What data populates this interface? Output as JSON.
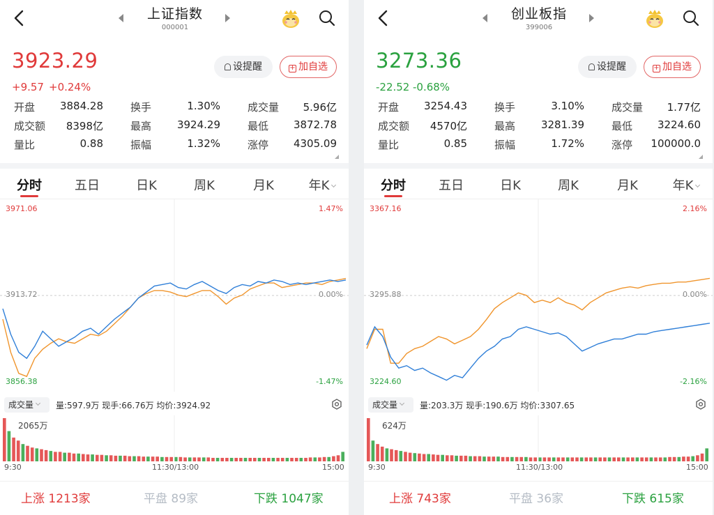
{
  "panels": [
    {
      "title": "上证指数",
      "code": "000001",
      "price": "3923.29",
      "change": "+9.57",
      "change_pct": "+0.24%",
      "direction": "up",
      "buttons": {
        "alert": "设提醒",
        "watchlist": "加自选"
      },
      "stats": [
        {
          "label": "开盘",
          "value": "3884.28",
          "color": "dn"
        },
        {
          "label": "换手",
          "value": "1.30%",
          "color": ""
        },
        {
          "label": "成交量",
          "value": "5.96亿",
          "color": ""
        },
        {
          "label": "成交额",
          "value": "8398亿",
          "color": ""
        },
        {
          "label": "最高",
          "value": "3924.29",
          "color": "up"
        },
        {
          "label": "最低",
          "value": "3872.78",
          "color": "dn"
        },
        {
          "label": "量比",
          "value": "0.88",
          "color": ""
        },
        {
          "label": "振幅",
          "value": "1.32%",
          "color": ""
        },
        {
          "label": "涨停",
          "value": "4305.09",
          "color": "up"
        }
      ],
      "tabs": [
        "分时",
        "五日",
        "日K",
        "周K",
        "月K",
        "年K"
      ],
      "chart": {
        "top_price": "3971.06",
        "mid_price": "3913.72",
        "bottom_price": "3856.38",
        "top_pct": "1.47%",
        "mid_pct": "0.00%",
        "bottom_pct": "-1.47%",
        "ref": 3913.72,
        "min": 3856.38,
        "max": 3971.06,
        "price_series": [
          3905,
          3888,
          3876,
          3872,
          3880,
          3890,
          3885,
          3880,
          3883,
          3886,
          3890,
          3892,
          3888,
          3893,
          3898,
          3902,
          3906,
          3912,
          3916,
          3920,
          3921,
          3922,
          3919,
          3918,
          3921,
          3923,
          3920,
          3917,
          3915,
          3919,
          3921,
          3920,
          3923,
          3922,
          3924,
          3923,
          3921,
          3922,
          3921,
          3922,
          3923,
          3924,
          3923,
          3924
        ],
        "avg_series": [
          3898,
          3876,
          3862,
          3860,
          3872,
          3878,
          3882,
          3885,
          3883,
          3882,
          3885,
          3888,
          3887,
          3890,
          3895,
          3900,
          3906,
          3912,
          3915,
          3917,
          3917,
          3916,
          3914,
          3913,
          3915,
          3917,
          3917,
          3913,
          3908,
          3912,
          3914,
          3918,
          3920,
          3922,
          3922,
          3919,
          3920,
          3921,
          3922,
          3922,
          3921,
          3923,
          3924,
          3925
        ]
      },
      "volume": {
        "selector": "成交量",
        "info": "量:597.9万  现手:66.76万  均价:3924.92",
        "max_label": "2065万",
        "bars": [
          100,
          70,
          55,
          48,
          40,
          36,
          32,
          30,
          28,
          26,
          24,
          22,
          22,
          20,
          20,
          18,
          18,
          17,
          16,
          16,
          15,
          15,
          14,
          14,
          13,
          13,
          13,
          12,
          12,
          12,
          11,
          11,
          11,
          11,
          10,
          10,
          10,
          10,
          10,
          9,
          9,
          9,
          9,
          9,
          9,
          8,
          8,
          8,
          8,
          8,
          8,
          8,
          8,
          8,
          8,
          8,
          8,
          8,
          8,
          8,
          8,
          8,
          8,
          8,
          8,
          8,
          9,
          9,
          9,
          10,
          10,
          12,
          14,
          22
        ]
      },
      "time": {
        "start": "9:30",
        "mid": "11:30/13:00",
        "end": "15:00"
      },
      "breadth": {
        "up_label": "上涨",
        "up": "1213家",
        "flat_label": "平盘",
        "flat": "89家",
        "down_label": "下跌",
        "down": "1047家"
      }
    },
    {
      "title": "创业板指",
      "code": "399006",
      "price": "3273.36",
      "change": "-22.52",
      "change_pct": "-0.68%",
      "direction": "down",
      "buttons": {
        "alert": "设提醒",
        "watchlist": "加自选"
      },
      "stats": [
        {
          "label": "开盘",
          "value": "3254.43",
          "color": "dn"
        },
        {
          "label": "换手",
          "value": "3.10%",
          "color": ""
        },
        {
          "label": "成交量",
          "value": "1.77亿",
          "color": ""
        },
        {
          "label": "成交额",
          "value": "4570亿",
          "color": ""
        },
        {
          "label": "最高",
          "value": "3281.39",
          "color": "dn"
        },
        {
          "label": "最低",
          "value": "3224.60",
          "color": "dn"
        },
        {
          "label": "量比",
          "value": "0.85",
          "color": ""
        },
        {
          "label": "振幅",
          "value": "1.72%",
          "color": ""
        },
        {
          "label": "涨停",
          "value": "100000.0",
          "color": "up"
        }
      ],
      "tabs": [
        "分时",
        "五日",
        "日K",
        "周K",
        "月K",
        "年K"
      ],
      "chart": {
        "top_price": "3367.16",
        "mid_price": "3295.88",
        "bottom_price": "3224.60",
        "top_pct": "2.16%",
        "mid_pct": "0.00%",
        "bottom_pct": "-2.16%",
        "ref": 3295.88,
        "min": 3224.6,
        "max": 3367.16,
        "price_series": [
          3255,
          3270,
          3262,
          3245,
          3236,
          3238,
          3234,
          3236,
          3232,
          3229,
          3226,
          3230,
          3228,
          3236,
          3244,
          3250,
          3254,
          3260,
          3262,
          3268,
          3270,
          3268,
          3266,
          3264,
          3265,
          3262,
          3256,
          3250,
          3253,
          3256,
          3258,
          3260,
          3260,
          3262,
          3264,
          3264,
          3266,
          3267,
          3268,
          3269,
          3270,
          3271,
          3272,
          3273
        ],
        "avg_series": [
          3252,
          3268,
          3268,
          3240,
          3240,
          3248,
          3252,
          3254,
          3258,
          3262,
          3260,
          3256,
          3259,
          3262,
          3268,
          3276,
          3285,
          3290,
          3294,
          3298,
          3296,
          3290,
          3292,
          3290,
          3294,
          3290,
          3288,
          3284,
          3290,
          3294,
          3298,
          3300,
          3302,
          3303,
          3302,
          3304,
          3305,
          3306,
          3306,
          3307,
          3307,
          3308,
          3309,
          3310
        ]
      },
      "volume": {
        "selector": "成交量",
        "info": "量:203.3万  现手:190.6万  均价:3307.65",
        "max_label": "624万",
        "bars": [
          100,
          48,
          40,
          34,
          30,
          28,
          26,
          24,
          22,
          20,
          19,
          18,
          17,
          17,
          16,
          15,
          15,
          14,
          14,
          13,
          13,
          13,
          12,
          12,
          12,
          11,
          11,
          11,
          11,
          10,
          10,
          10,
          10,
          10,
          10,
          9,
          9,
          9,
          9,
          9,
          9,
          9,
          9,
          9,
          9,
          9,
          9,
          9,
          9,
          9,
          9,
          9,
          9,
          9,
          9,
          9,
          9,
          9,
          9,
          9,
          9,
          9,
          9,
          9,
          9,
          10,
          10,
          10,
          11,
          11,
          12,
          14,
          18,
          30
        ]
      },
      "time": {
        "start": "9:30",
        "mid": "11:30/13:00",
        "end": "15:00"
      },
      "breadth": {
        "up_label": "上涨",
        "up": "743家",
        "flat_label": "平盘",
        "flat": "36家",
        "down_label": "下跌",
        "down": "615家"
      }
    }
  ],
  "icons": {
    "back": "back-chevron-icon",
    "prev": "prev-arrow-icon",
    "next": "next-arrow-icon",
    "mascot": "mascot-icon",
    "search": "search-icon",
    "settings": "gear-icon"
  },
  "colors": {
    "up": "#e03a3a",
    "down": "#2aa13f",
    "price_line": "#2f7fd8",
    "avg_line": "#f0952d"
  }
}
